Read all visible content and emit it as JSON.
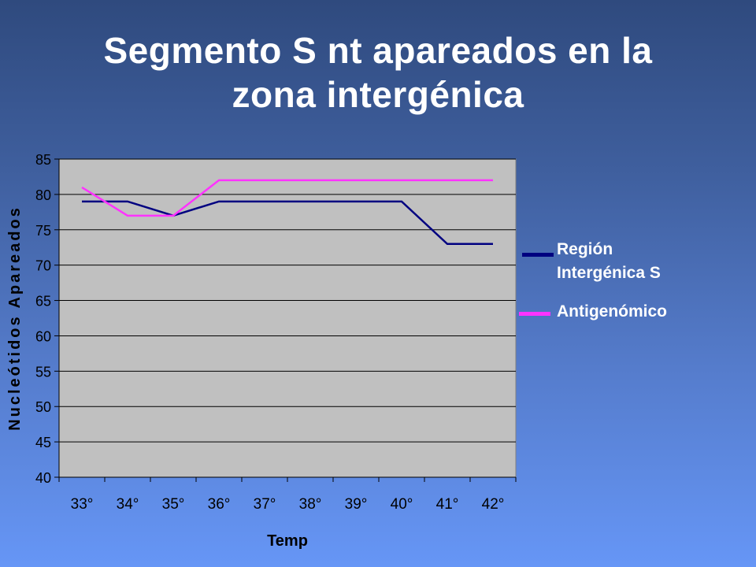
{
  "title": {
    "line1": "Segmento S nt apareados en la",
    "line2": "zona intergénica"
  },
  "chart_data": {
    "type": "line",
    "categories": [
      "33°",
      "34°",
      "35°",
      "36°",
      "37°",
      "38°",
      "39°",
      "40°",
      "41°",
      "42°"
    ],
    "series": [
      {
        "name": "Región Intergénica S",
        "color": "#000080",
        "values": [
          79,
          79,
          77,
          79,
          79,
          79,
          79,
          79,
          73,
          73
        ]
      },
      {
        "name": "Antigenómico",
        "color": "#ff33ff",
        "values": [
          81,
          77,
          77,
          82,
          82,
          82,
          82,
          82,
          82,
          82
        ]
      }
    ],
    "xlabel": "Temp",
    "ylabel": "Nucleótidos Apareados",
    "ylim": [
      40,
      85
    ],
    "yticks": [
      40,
      45,
      50,
      55,
      60,
      65,
      70,
      75,
      80,
      85
    ],
    "grid": true,
    "plot_background": "#c0c0c0",
    "legend_position": "right"
  },
  "legend": {
    "item1_line1": "Región",
    "item1_line2": "Intergénica S",
    "item2": "Antigenómico"
  }
}
